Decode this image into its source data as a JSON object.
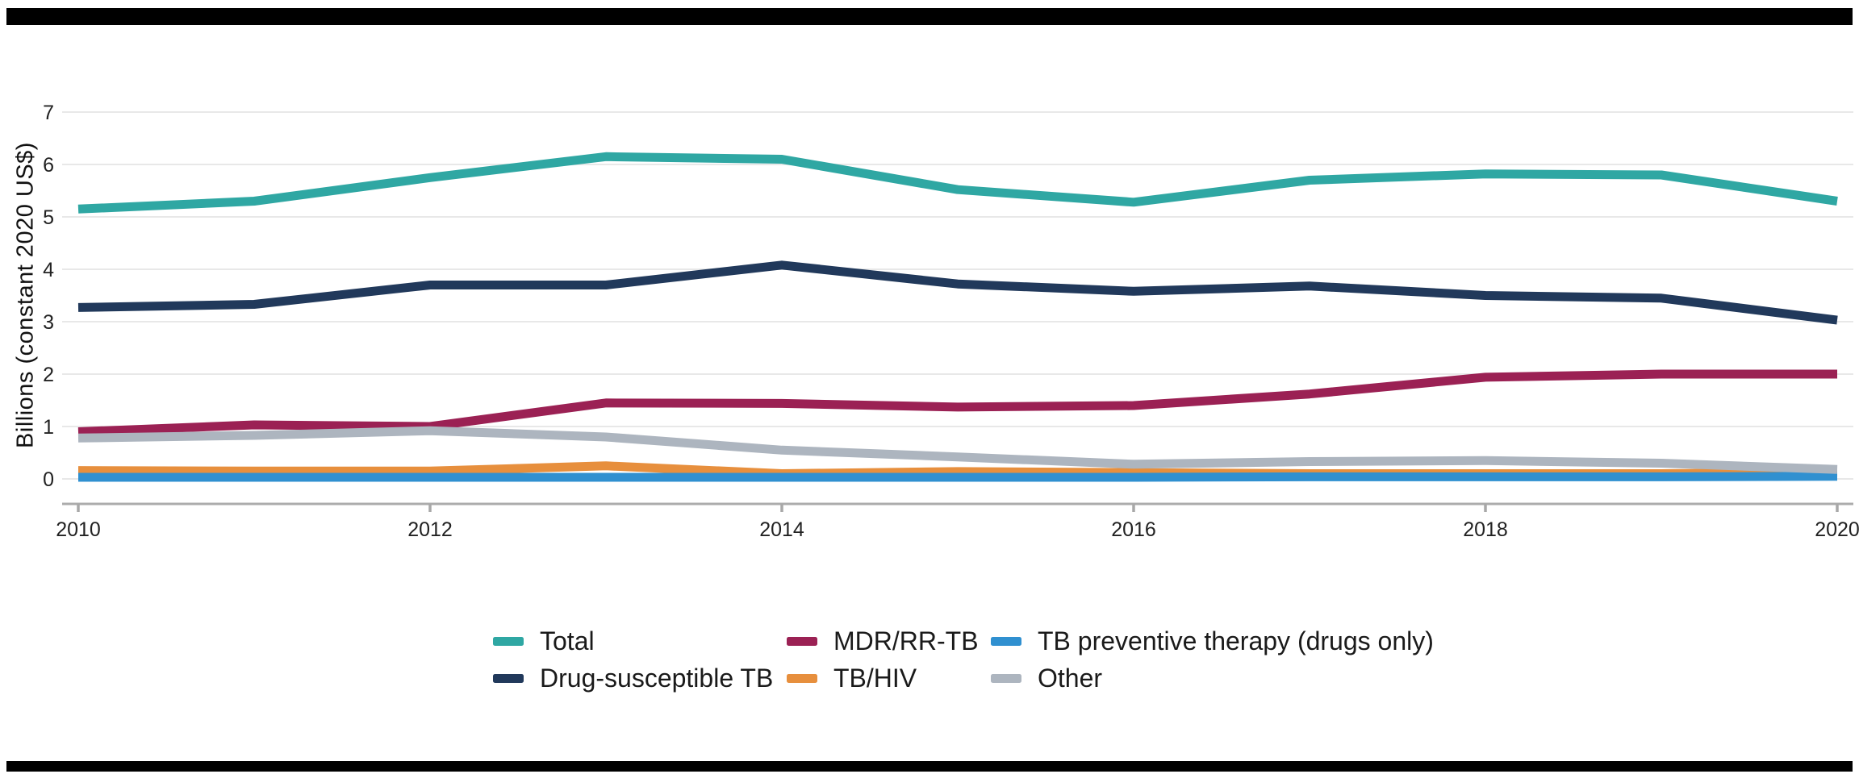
{
  "figure": {
    "background": "#ffffff",
    "top_rule_color": "#000000",
    "bottom_rule_color": "#000000"
  },
  "chart_data": {
    "type": "line",
    "title": "",
    "xlabel": "",
    "ylabel": "Billions (constant 2020 US$)",
    "x": [
      2010,
      2011,
      2012,
      2013,
      2014,
      2015,
      2016,
      2017,
      2018,
      2019,
      2020
    ],
    "x_tick_labels": [
      "2010",
      "2012",
      "2014",
      "2016",
      "2018",
      "2020"
    ],
    "x_ticks": [
      2010,
      2012,
      2014,
      2016,
      2018,
      2020
    ],
    "y_ticks": [
      0,
      1,
      2,
      3,
      4,
      5,
      6,
      7
    ],
    "xlim": [
      2010,
      2020
    ],
    "ylim": [
      0,
      7
    ],
    "grid": "horizontal",
    "legend_position": "bottom",
    "series": [
      {
        "name": "Total",
        "color": "#2FA7A3",
        "values": [
          5.15,
          5.3,
          5.75,
          6.15,
          6.1,
          5.52,
          5.28,
          5.7,
          5.82,
          5.8,
          5.3
        ]
      },
      {
        "name": "Drug-susceptible TB",
        "color": "#21395B",
        "values": [
          3.27,
          3.33,
          3.7,
          3.7,
          4.08,
          3.72,
          3.58,
          3.68,
          3.5,
          3.45,
          3.03
        ]
      },
      {
        "name": "MDR/RR-TB",
        "color": "#9B2154",
        "values": [
          0.9,
          1.03,
          1.0,
          1.45,
          1.44,
          1.37,
          1.4,
          1.62,
          1.94,
          2.0,
          2.0
        ]
      },
      {
        "name": "TB/HIV",
        "color": "#E78F3D",
        "values": [
          0.16,
          0.15,
          0.15,
          0.25,
          0.1,
          0.14,
          0.12,
          0.1,
          0.1,
          0.1,
          0.13
        ]
      },
      {
        "name": "TB preventive therapy (drugs only)",
        "color": "#3090D0",
        "values": [
          0.03,
          0.03,
          0.03,
          0.03,
          0.03,
          0.03,
          0.03,
          0.04,
          0.04,
          0.04,
          0.05
        ]
      },
      {
        "name": "Other",
        "color": "#ADB5BF",
        "values": [
          0.78,
          0.83,
          0.92,
          0.8,
          0.55,
          0.42,
          0.28,
          0.33,
          0.35,
          0.3,
          0.18
        ]
      }
    ],
    "legend_columns": [
      [
        "Total",
        "Drug-susceptible TB"
      ],
      [
        "MDR/RR-TB",
        "TB/HIV"
      ],
      [
        "TB preventive therapy (drugs only)",
        "Other"
      ]
    ]
  }
}
